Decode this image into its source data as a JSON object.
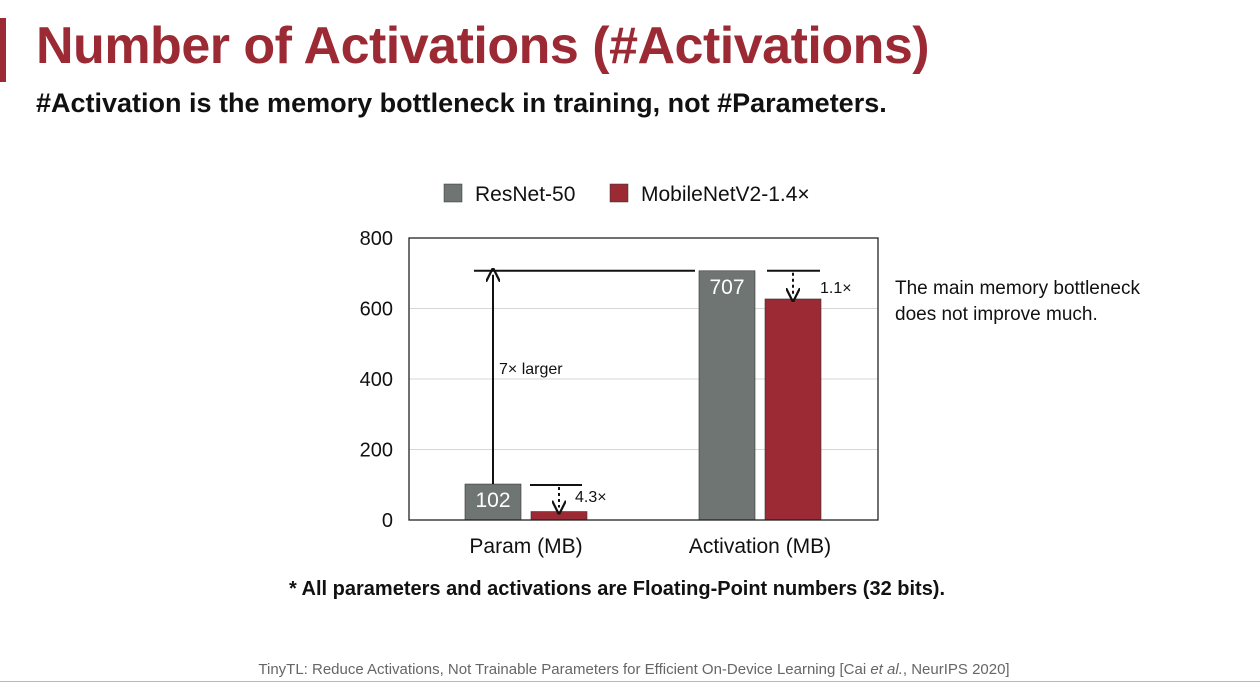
{
  "slide": {
    "title": "Number of Activations (#Activations)",
    "subtitle": "#Activation is the memory bottleneck in training, not #Parameters.",
    "note": "* All parameters and activations are Floating-Point numbers (32 bits).",
    "citation_prefix": "TinyTL: Reduce Activations, Not Trainable Parameters for Efficient On-Device Learning [Cai ",
    "citation_italic": "et al.",
    "citation_suffix": ", NeurIPS 2020]",
    "accent_color": "#9b2a34"
  },
  "chart_data": {
    "type": "bar",
    "categories": [
      "Param (MB)",
      "Activation (MB)"
    ],
    "series": [
      {
        "name": "ResNet-50",
        "values": [
          102,
          707
        ],
        "color": "#6e7572",
        "value_labels": [
          "102",
          "707"
        ]
      },
      {
        "name": "MobileNetV2-1.4×",
        "values": [
          24,
          627
        ],
        "color": "#9b2a34"
      }
    ],
    "ylim": [
      0,
      800
    ],
    "yticks": [
      0,
      200,
      400,
      600,
      800
    ],
    "grid": true,
    "legend_position": "top",
    "annotations": {
      "param_ratio": "4.3×",
      "activation_ratio": "1.1×",
      "larger": "7× larger",
      "side_note_line1": "The main memory bottleneck",
      "side_note_line2": "does not improve much."
    }
  }
}
